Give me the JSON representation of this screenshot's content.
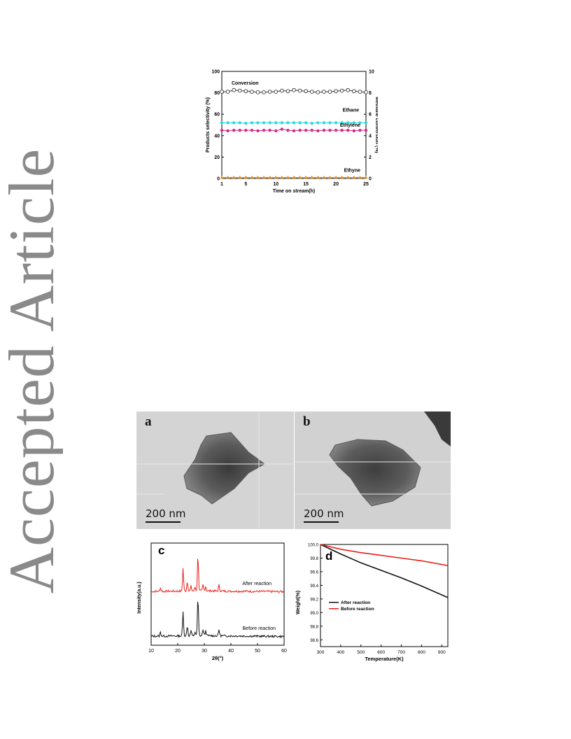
{
  "watermark": {
    "text": "Accepted Article"
  },
  "figure_top": {
    "chart_data": {
      "type": "line",
      "xlabel": "Time on stream(h)",
      "ylabel_left": "Products selectivity (%)",
      "ylabel_right": "Methane conversion (%)",
      "xlim": [
        1,
        25
      ],
      "ylim_left": [
        0,
        100
      ],
      "ylim_right": [
        0,
        10
      ],
      "x_ticks": [
        1,
        5,
        10,
        15,
        20,
        25
      ],
      "y_ticks_left": [
        0,
        20,
        40,
        60,
        80,
        100
      ],
      "y_ticks_right": [
        0,
        2,
        4,
        6,
        8,
        10
      ],
      "x": [
        1,
        2,
        3,
        4,
        5,
        6,
        7,
        8,
        9,
        10,
        11,
        12,
        13,
        14,
        15,
        16,
        17,
        18,
        19,
        20,
        21,
        22,
        23,
        24,
        25
      ],
      "series": [
        {
          "name": "Conversion",
          "axis": "right",
          "color": "#333333",
          "marker": "open-circle",
          "values": [
            8.1,
            8.1,
            8.25,
            8.2,
            8.15,
            8.1,
            8.05,
            8.05,
            8.1,
            8.1,
            8.2,
            8.15,
            8.25,
            8.2,
            8.15,
            8.1,
            8.05,
            8.1,
            8.1,
            8.15,
            8.2,
            8.25,
            8.15,
            8.1,
            8.05
          ]
        },
        {
          "name": "Ethane",
          "axis": "left",
          "color": "#2ed8dc",
          "marker": "filled-circle",
          "values": [
            52,
            52,
            52,
            52,
            51.5,
            52,
            52,
            52,
            52,
            52,
            52,
            52,
            52,
            52,
            52,
            51.5,
            52,
            52,
            52,
            52,
            52,
            52,
            52,
            52,
            52
          ]
        },
        {
          "name": "Ethylene",
          "axis": "left",
          "color": "#d62a86",
          "marker": "filled-circle",
          "values": [
            45,
            44.5,
            45,
            45,
            45,
            45,
            44.5,
            45,
            45,
            44.5,
            46,
            45,
            44.5,
            45,
            45,
            45,
            44.5,
            45,
            45,
            45,
            45,
            45,
            44.5,
            45,
            45
          ]
        },
        {
          "name": "Ethyne",
          "axis": "left",
          "color": "#e88a1a",
          "marker": "triangle",
          "values": [
            1,
            1,
            1,
            1,
            1,
            1,
            1,
            1,
            1,
            1,
            1,
            1,
            1,
            1,
            1,
            1,
            1,
            1,
            1,
            1,
            1,
            1,
            1,
            1,
            1
          ]
        }
      ]
    }
  },
  "figure_bottom": {
    "panel_a": {
      "letter": "a",
      "scale": "200 nm"
    },
    "panel_b": {
      "letter": "b",
      "scale": "200 nm"
    },
    "panel_c": {
      "letter": "c",
      "chart_data": {
        "type": "line",
        "xlabel": "2θ(°)",
        "ylabel": "Intensity(a.u.)",
        "xlim": [
          10,
          60
        ],
        "x_ticks": [
          10,
          20,
          30,
          40,
          50,
          60
        ],
        "peaks_2theta": [
          13.5,
          22,
          23.6,
          25,
          26.5,
          27.6,
          29.5,
          30.5,
          35.5
        ],
        "series": [
          {
            "name": "After reaction",
            "color": "#e8201a"
          },
          {
            "name": "Before reaction",
            "color": "#111111"
          }
        ]
      }
    },
    "panel_d": {
      "letter": "d",
      "chart_data": {
        "type": "line",
        "xlabel": "Temperature(K)",
        "ylabel": "Weight(%)",
        "xlim": [
          300,
          930
        ],
        "ylim": [
          98.5,
          100.0
        ],
        "x_ticks": [
          300,
          400,
          500,
          600,
          700,
          800,
          900
        ],
        "y_ticks": [
          98.6,
          98.8,
          99.0,
          99.2,
          99.4,
          99.6,
          99.8,
          100.0
        ],
        "legend_position": "lower-left",
        "series": [
          {
            "name": "After reaction",
            "color": "#111111",
            "x": [
              300,
              400,
              500,
              600,
              700,
              800,
              930
            ],
            "values": [
              100.0,
              99.86,
              99.73,
              99.62,
              99.51,
              99.39,
              99.22
            ]
          },
          {
            "name": "Before reaction",
            "color": "#e8201a",
            "x": [
              300,
              400,
              500,
              600,
              700,
              800,
              930
            ],
            "values": [
              100.0,
              99.93,
              99.88,
              99.84,
              99.8,
              99.76,
              99.69
            ]
          }
        ]
      }
    }
  }
}
